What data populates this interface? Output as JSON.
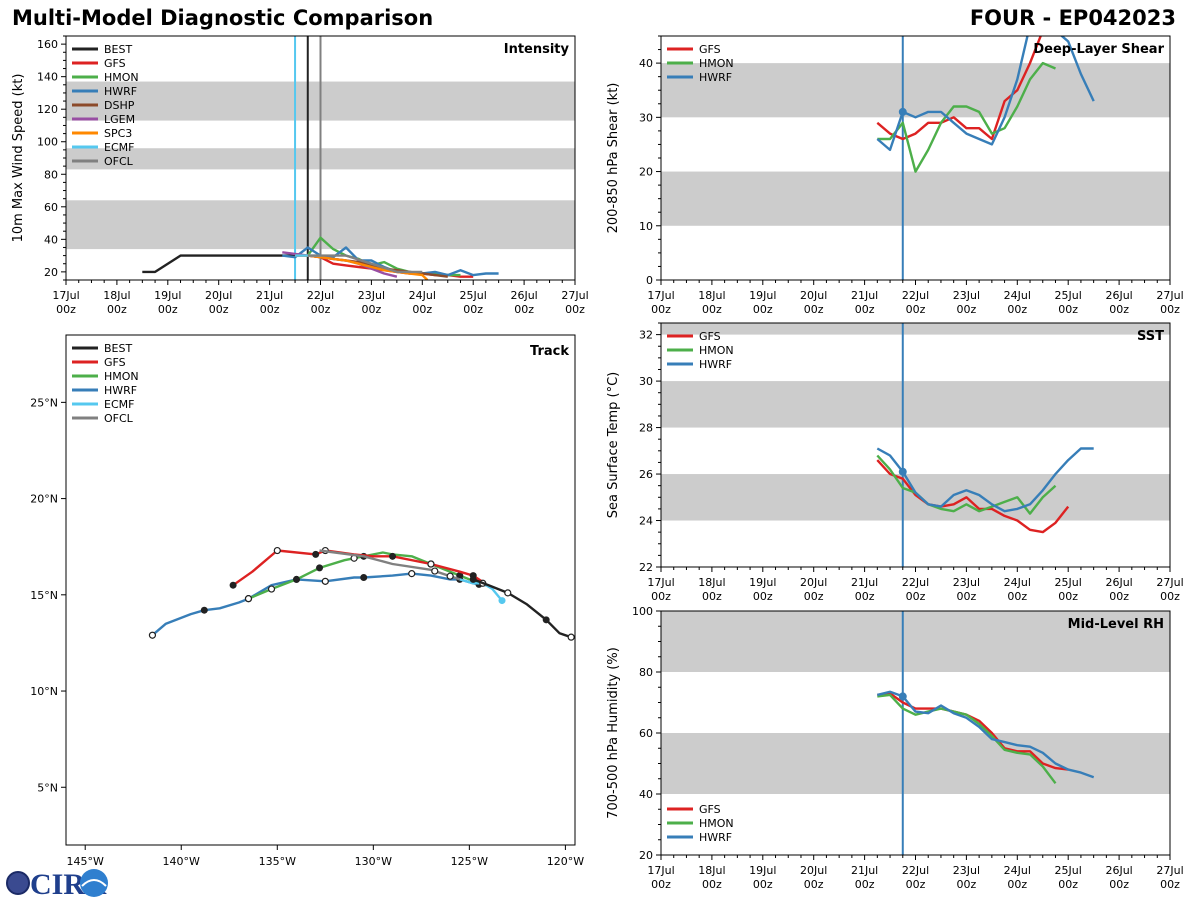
{
  "header": {
    "main_title": "Multi-Model Diagnostic Comparison",
    "storm_id": "FOUR - EP042023"
  },
  "logo": {
    "text": "CIRA"
  },
  "colors": {
    "BEST": "#222222",
    "GFS": "#dd2222",
    "HMON": "#4daf4a",
    "HWRF": "#377eb8",
    "DSHP": "#8c4a2a",
    "LGEM": "#984ea3",
    "SPC3": "#ff8800",
    "ECMF": "#55c8ef",
    "OFCL": "#808080",
    "band": "#cccccc"
  },
  "time_axis": {
    "ticks": [
      {
        "day": 17,
        "top": "17Jul",
        "bottom": "00z"
      },
      {
        "day": 18,
        "top": "18Jul",
        "bottom": "00z"
      },
      {
        "day": 19,
        "top": "19Jul",
        "bottom": "00z"
      },
      {
        "day": 20,
        "top": "20Jul",
        "bottom": "00z"
      },
      {
        "day": 21,
        "top": "21Jul",
        "bottom": "00z"
      },
      {
        "day": 22,
        "top": "22Jul",
        "bottom": "00z"
      },
      {
        "day": 23,
        "top": "23Jul",
        "bottom": "00z"
      },
      {
        "day": 24,
        "top": "24Jul",
        "bottom": "00z"
      },
      {
        "day": 25,
        "top": "25Jul",
        "bottom": "00z"
      },
      {
        "day": 26,
        "top": "26Jul",
        "bottom": "00z"
      },
      {
        "day": 27,
        "top": "27Jul",
        "bottom": "00z"
      }
    ]
  },
  "chart_data": [
    {
      "id": "intensity",
      "type": "line",
      "title": "Intensity",
      "ylabel": "10m Max Wind Speed (kt)",
      "xlim": [
        17,
        27
      ],
      "ylim": [
        15,
        165
      ],
      "yticks": [
        20,
        40,
        60,
        80,
        100,
        120,
        140,
        160
      ],
      "bands": [
        [
          34,
          64
        ],
        [
          83,
          96
        ],
        [
          113,
          137
        ]
      ],
      "vlines": [
        {
          "x": 21.5,
          "series": "ECMF"
        },
        {
          "x": 21.75,
          "series": "BEST"
        },
        {
          "x": 22.0,
          "series": "OFCL"
        }
      ],
      "legend": [
        "BEST",
        "GFS",
        "HMON",
        "HWRF",
        "DSHP",
        "LGEM",
        "SPC3",
        "ECMF",
        "OFCL"
      ],
      "series": [
        {
          "name": "BEST",
          "x": [
            18.5,
            18.75,
            19.25,
            19.5,
            20.0,
            20.5,
            21.0,
            21.5,
            21.75
          ],
          "y": [
            20,
            20,
            30,
            30,
            30,
            30,
            30,
            30,
            30
          ]
        },
        {
          "name": "GFS",
          "x": [
            21.75,
            22.0,
            22.25,
            22.5,
            22.75,
            23.0,
            23.25,
            23.5,
            23.75,
            24.0,
            24.25,
            24.5,
            24.75,
            25.0
          ],
          "y": [
            30,
            29,
            25,
            24,
            23,
            22,
            21,
            20,
            19,
            19,
            18,
            18,
            17,
            17
          ]
        },
        {
          "name": "HMON",
          "x": [
            21.75,
            22.0,
            22.25,
            22.5,
            22.75,
            23.0,
            23.25,
            23.5,
            23.75,
            24.0,
            24.25,
            24.5,
            24.75
          ],
          "y": [
            30,
            41,
            34,
            30,
            28,
            24,
            26,
            22,
            20,
            19,
            19,
            18,
            18
          ]
        },
        {
          "name": "HWRF",
          "x": [
            21.25,
            21.5,
            21.75,
            22.0,
            22.25,
            22.5,
            22.75,
            23.0,
            23.25,
            23.5,
            23.75,
            24.0,
            24.25,
            24.5,
            24.75,
            25.0,
            25.25,
            25.5
          ],
          "y": [
            30,
            29,
            35,
            30,
            29,
            35,
            27,
            27,
            23,
            20,
            20,
            19,
            20,
            18,
            21,
            18,
            19,
            19
          ]
        },
        {
          "name": "DSHP",
          "x": [
            21.75,
            22.0,
            22.25,
            22.5,
            22.75,
            23.0,
            23.25,
            23.5,
            23.75,
            24.0,
            24.25,
            24.5
          ],
          "y": [
            30,
            29,
            28,
            27,
            26,
            24,
            22,
            21,
            20,
            19,
            18,
            17
          ]
        },
        {
          "name": "LGEM",
          "x": [
            21.25,
            21.5,
            21.75,
            22.0,
            22.25,
            22.5,
            22.75,
            23.0,
            23.25,
            23.5
          ],
          "y": [
            32,
            31,
            30,
            29,
            28,
            27,
            25,
            22,
            19,
            17
          ]
        },
        {
          "name": "SPC3",
          "x": [
            21.5,
            21.75,
            22.0,
            22.25,
            22.5,
            22.75,
            23.0,
            23.25,
            23.5,
            23.75,
            24.0,
            24.1
          ],
          "y": [
            30,
            30,
            29,
            28,
            27,
            25,
            23,
            21,
            20,
            19,
            18,
            15
          ]
        },
        {
          "name": "ECMF",
          "x": [
            21.5,
            21.75,
            22.0
          ],
          "y": [
            30,
            30,
            30
          ]
        },
        {
          "name": "OFCL",
          "x": [
            21.75,
            22.0,
            22.5,
            23.0,
            23.5,
            24.0
          ],
          "y": [
            30,
            30,
            30,
            25,
            20,
            20
          ]
        }
      ]
    },
    {
      "id": "shear",
      "type": "line",
      "title": "Deep-Layer Shear",
      "ylabel": "200-850 hPa Shear (kt)",
      "xlim": [
        17,
        27
      ],
      "ylim": [
        0,
        45
      ],
      "yticks": [
        0,
        10,
        20,
        30,
        40
      ],
      "bands": [
        [
          10,
          20
        ],
        [
          30,
          40
        ]
      ],
      "vlines": [
        {
          "x": 21.75,
          "series": "HWRF"
        }
      ],
      "legend": [
        "GFS",
        "HMON",
        "HWRF"
      ],
      "series": [
        {
          "name": "GFS",
          "x": [
            21.25,
            21.5,
            21.75,
            22.0,
            22.25,
            22.5,
            22.75,
            23.0,
            23.25,
            23.5,
            23.75,
            24.0,
            24.25,
            24.5,
            24.75
          ],
          "y": [
            29,
            27,
            26,
            27,
            29,
            29,
            30,
            28,
            28,
            26,
            33,
            35,
            40,
            46,
            50
          ]
        },
        {
          "name": "HMON",
          "x": [
            21.25,
            21.5,
            21.75,
            22.0,
            22.25,
            22.5,
            22.75,
            23.0,
            23.25,
            23.5,
            23.75,
            24.0,
            24.25,
            24.5,
            24.75
          ],
          "y": [
            26,
            26,
            29,
            20,
            24,
            29,
            32,
            32,
            31,
            27,
            28,
            32,
            37,
            40,
            39
          ]
        },
        {
          "name": "HWRF",
          "x": [
            21.25,
            21.5,
            21.75,
            22.0,
            22.25,
            22.5,
            22.75,
            23.0,
            23.25,
            23.5,
            23.75,
            24.0,
            24.25,
            24.5,
            24.75,
            25.0,
            25.25,
            25.5
          ],
          "y": [
            26,
            24,
            31,
            30,
            31,
            31,
            29,
            27,
            26,
            25,
            30,
            37,
            47,
            48,
            46,
            44,
            38,
            33
          ]
        }
      ]
    },
    {
      "id": "track",
      "type": "line",
      "title": "Track",
      "xlim": [
        -146,
        -119.5
      ],
      "ylim": [
        2,
        28.5
      ],
      "xticks": [
        -145,
        -140,
        -135,
        -130,
        -125,
        -120
      ],
      "xticklabels": [
        "145°W",
        "140°W",
        "135°W",
        "130°W",
        "125°W",
        "120°W"
      ],
      "yticks": [
        5,
        10,
        15,
        20,
        25
      ],
      "yticklabels": [
        "5°N",
        "10°N",
        "15°N",
        "20°N",
        "25°N"
      ],
      "legend": [
        "BEST",
        "GFS",
        "HMON",
        "HWRF",
        "ECMF",
        "OFCL"
      ],
      "series": [
        {
          "name": "BEST",
          "lon": [
            -119.7,
            -120.3,
            -121.0,
            -122.0,
            -123.0,
            -124.0,
            -124.8
          ],
          "lat": [
            12.8,
            13.0,
            13.7,
            14.5,
            15.1,
            15.5,
            15.8
          ],
          "filled": [
            -121.0,
            -124.8
          ],
          "open": [
            -119.7,
            -123.0
          ]
        },
        {
          "name": "GFS",
          "lon": [
            -137.3,
            -136.3,
            -135.0,
            -133.0,
            -132.5,
            -131.0,
            -130.0,
            -129.0,
            -127.0,
            -125.5,
            -124.8,
            -124.2
          ],
          "lat": [
            15.5,
            16.2,
            17.3,
            17.1,
            17.3,
            17.1,
            17.0,
            17.0,
            16.6,
            16.2,
            16.0,
            15.6
          ],
          "filled": [
            -137.3,
            -133.0,
            -129.0,
            -124.8
          ],
          "open": [
            -135.0,
            -132.5,
            -127.0
          ]
        },
        {
          "name": "HMON",
          "lon": [
            -136.5,
            -135.3,
            -134.0,
            -132.8,
            -131.5,
            -130.5,
            -129.5,
            -129.0,
            -128.0,
            -127.0,
            -126.0,
            -125.0,
            -124.3
          ],
          "lat": [
            14.8,
            15.3,
            15.8,
            16.4,
            16.8,
            17.0,
            17.2,
            17.1,
            17.0,
            16.6,
            16.2,
            15.8,
            15.6
          ],
          "filled": [
            -134.0,
            -132.8,
            -130.5,
            -125.5
          ],
          "open": [
            -136.5,
            -135.3,
            -131.0,
            -127.0
          ]
        },
        {
          "name": "HWRF",
          "lon": [
            -141.5,
            -140.8,
            -139.5,
            -138.8,
            -138.0,
            -137.0,
            -136.5,
            -135.3,
            -134.0,
            -132.5,
            -131.0,
            -130.5,
            -129.0,
            -128.0,
            -127.0,
            -126.0,
            -125.5,
            -124.8,
            -124.3,
            -124.0
          ],
          "lat": [
            12.9,
            13.5,
            14.0,
            14.2,
            14.3,
            14.6,
            14.8,
            15.5,
            15.8,
            15.7,
            15.9,
            15.9,
            16.0,
            16.1,
            16.0,
            15.8,
            15.8,
            15.6,
            15.5,
            15.5
          ],
          "filled": [
            -138.8,
            -134.0,
            -130.5,
            -125.5,
            -124.5
          ],
          "open": [
            -141.5,
            -136.5,
            -132.5,
            -128.0
          ]
        },
        {
          "name": "ECMF",
          "lon": [
            -125.5,
            -124.8,
            -124.3,
            -123.8,
            -123.3
          ],
          "lat": [
            15.8,
            15.6,
            15.6,
            15.3,
            14.7
          ],
          "filled": [
            -123.3
          ],
          "open": [
            -124.3
          ]
        },
        {
          "name": "OFCL",
          "lon": [
            -132.8,
            -130.5,
            -129.0,
            -127.0,
            -125.5
          ],
          "lat": [
            17.3,
            17.0,
            16.6,
            16.3,
            15.8
          ],
          "filled": [],
          "open": [
            -126.8,
            -126.0
          ]
        }
      ]
    },
    {
      "id": "sst",
      "type": "line",
      "title": "SST",
      "ylabel": "Sea Surface Temp (°C)",
      "xlim": [
        17,
        27
      ],
      "ylim": [
        22,
        32.5
      ],
      "yticks": [
        22,
        24,
        26,
        28,
        30,
        32
      ],
      "bands": [
        [
          24,
          26
        ],
        [
          28,
          30
        ],
        [
          32,
          32.5
        ]
      ],
      "vlines": [
        {
          "x": 21.75,
          "series": "HWRF"
        }
      ],
      "legend": [
        "GFS",
        "HMON",
        "HWRF"
      ],
      "series": [
        {
          "name": "GFS",
          "x": [
            21.25,
            21.5,
            21.75,
            22.0,
            22.25,
            22.5,
            22.75,
            23.0,
            23.25,
            23.5,
            23.75,
            24.0,
            24.25,
            24.5,
            24.75,
            25.0
          ],
          "y": [
            26.6,
            26.0,
            25.8,
            25.1,
            24.7,
            24.6,
            24.7,
            25.0,
            24.5,
            24.5,
            24.2,
            24.0,
            23.6,
            23.5,
            23.9,
            24.6
          ]
        },
        {
          "name": "HMON",
          "x": [
            21.25,
            21.5,
            21.75,
            22.0,
            22.25,
            22.5,
            22.75,
            23.0,
            23.25,
            23.5,
            23.75,
            24.0,
            24.25,
            24.5,
            24.75
          ],
          "y": [
            26.8,
            26.2,
            25.4,
            25.2,
            24.7,
            24.5,
            24.4,
            24.7,
            24.4,
            24.6,
            24.8,
            25.0,
            24.3,
            25.0,
            25.5
          ]
        },
        {
          "name": "HWRF",
          "x": [
            21.25,
            21.5,
            21.75,
            22.0,
            22.25,
            22.5,
            22.75,
            23.0,
            23.25,
            23.5,
            23.75,
            24.0,
            24.25,
            24.5,
            24.75,
            25.0,
            25.25,
            25.5
          ],
          "y": [
            27.1,
            26.8,
            26.1,
            25.2,
            24.7,
            24.6,
            25.1,
            25.3,
            25.1,
            24.7,
            24.4,
            24.5,
            24.7,
            25.3,
            26.0,
            26.6,
            27.1,
            27.1
          ]
        }
      ]
    },
    {
      "id": "rh",
      "type": "line",
      "title": "Mid-Level RH",
      "ylabel": "700-500 hPa Humidity (%)",
      "xlim": [
        17,
        27
      ],
      "ylim": [
        20,
        100
      ],
      "yticks": [
        20,
        40,
        60,
        80,
        100
      ],
      "bands": [
        [
          40,
          60
        ],
        [
          80,
          100
        ]
      ],
      "vlines": [
        {
          "x": 21.75,
          "series": "HWRF"
        }
      ],
      "legend": [
        "GFS",
        "HMON",
        "HWRF"
      ],
      "series": [
        {
          "name": "GFS",
          "x": [
            21.25,
            21.5,
            21.75,
            22.0,
            22.25,
            22.5,
            22.75,
            23.0,
            23.25,
            23.5,
            23.75,
            24.0,
            24.25,
            24.5,
            24.75,
            25.0
          ],
          "y": [
            72.5,
            73,
            70,
            68,
            68,
            68,
            67,
            66,
            64,
            60,
            55,
            54,
            54,
            50,
            48.5,
            48
          ]
        },
        {
          "name": "HMON",
          "x": [
            21.25,
            21.5,
            21.75,
            22.0,
            22.25,
            22.5,
            22.75,
            23.0,
            23.25,
            23.5,
            23.75,
            24.0,
            24.25,
            24.5,
            24.75
          ],
          "y": [
            72,
            72.5,
            68,
            66,
            67,
            68,
            67,
            66,
            63,
            59,
            54.5,
            53.5,
            53,
            49,
            43.5
          ]
        },
        {
          "name": "HWRF",
          "x": [
            21.25,
            21.5,
            21.75,
            22.0,
            22.25,
            22.5,
            22.75,
            23.0,
            23.25,
            23.5,
            23.75,
            24.0,
            24.25,
            24.5,
            24.75,
            25.0,
            25.25,
            25.5
          ],
          "y": [
            72.5,
            73.5,
            72,
            67,
            66.5,
            69,
            66.5,
            65,
            62,
            58,
            57,
            56,
            55.5,
            53.5,
            50,
            48,
            47,
            45.5
          ]
        }
      ]
    }
  ]
}
